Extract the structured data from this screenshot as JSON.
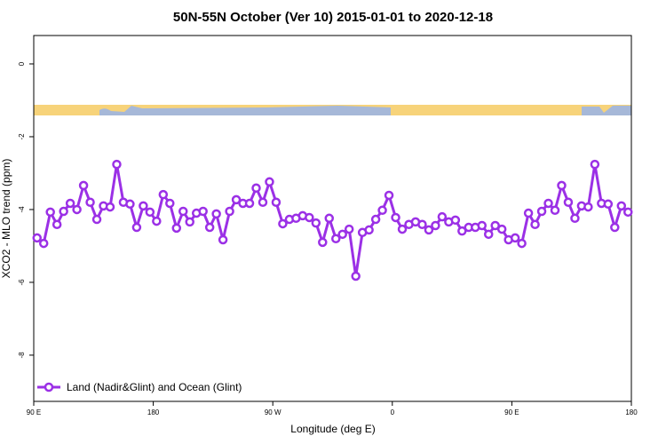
{
  "chart_data": {
    "type": "line",
    "title": "50N-55N October (Ver 10)   2015-01-01 to 2020-12-18",
    "x_label": "Longitude (deg E)",
    "y_label": "XCO2 - MLO trend (ppm)",
    "xlim": [
      90,
      540
    ],
    "ylim": [
      -9.27,
      0.78
    ],
    "xticks": [
      {
        "value": 90,
        "label": "90 E"
      },
      180,
      {
        "value": 270,
        "label": "90 W"
      },
      {
        "value": 360,
        "label": "0"
      },
      {
        "value": 450,
        "label": "90 E"
      },
      {
        "value": 540,
        "label": "180"
      }
    ],
    "yticks": [
      0,
      -2,
      -4,
      -6,
      -8
    ],
    "legend": "bottom-left",
    "series": [
      {
        "name": "Land (Nadir&Glint) and Ocean (Glint)",
        "color": "#9b30e6",
        "x": [
          92.5,
          97.5,
          102.5,
          107.5,
          112.5,
          117.5,
          122.5,
          127.5,
          132.5,
          137.5,
          142.5,
          147.5,
          152.5,
          157.5,
          162.5,
          167.5,
          172.5,
          177.5,
          182.5,
          187.5,
          192.5,
          197.5,
          202.5,
          207.5,
          212.5,
          217.5,
          222.5,
          227.5,
          232.5,
          237.5,
          242.5,
          247.5,
          252.5,
          257.5,
          262.5,
          267.5,
          272.5,
          277.5,
          282.5,
          287.5,
          292.5,
          297.5,
          302.5,
          307.5,
          312.5,
          317.5,
          322.5,
          327.5,
          332.5,
          337.5,
          342.5,
          347.5,
          352.5,
          357.5,
          362.5,
          367.5,
          372.5,
          377.5,
          382.5,
          387.5,
          392.5,
          397.5,
          402.5,
          407.5,
          412.5,
          417.5,
          422.5,
          427.5,
          432.5,
          437.5,
          442.5,
          447.5,
          452.5,
          457.5,
          462.5,
          467.5,
          472.5,
          477.5,
          482.5,
          487.5,
          492.5,
          497.5,
          502.5,
          507.5,
          512.5,
          517.5,
          522.5,
          527.5,
          532.5,
          537.5
        ],
        "values": [
          -4.78,
          -4.93,
          -4.07,
          -4.41,
          -4.05,
          -3.83,
          -4.0,
          -3.34,
          -3.8,
          -4.27,
          -3.9,
          -3.93,
          -2.76,
          -3.8,
          -3.85,
          -4.49,
          -3.9,
          -4.07,
          -4.32,
          -3.59,
          -3.83,
          -4.51,
          -4.05,
          -4.34,
          -4.1,
          -4.05,
          -4.49,
          -4.12,
          -4.83,
          -4.05,
          -3.73,
          -3.83,
          -3.83,
          -3.41,
          -3.8,
          -3.24,
          -3.8,
          -4.39,
          -4.27,
          -4.24,
          -4.17,
          -4.22,
          -4.37,
          -4.9,
          -4.24,
          -4.8,
          -4.68,
          -4.54,
          -5.83,
          -4.63,
          -4.56,
          -4.27,
          -4.02,
          -3.61,
          -4.22,
          -4.54,
          -4.41,
          -4.34,
          -4.41,
          -4.56,
          -4.44,
          -4.2,
          -4.34,
          -4.29,
          -4.59,
          -4.49,
          -4.49,
          -4.44,
          -4.68,
          -4.44,
          -4.54,
          -4.83,
          -4.78,
          -4.93,
          -4.1,
          -4.41,
          -4.05,
          -3.83,
          -4.02,
          -3.34,
          -3.8,
          -4.24,
          -3.9,
          -3.93,
          -2.76,
          -3.83,
          -3.85,
          -4.49,
          -3.9,
          -4.07
        ]
      }
    ]
  }
}
